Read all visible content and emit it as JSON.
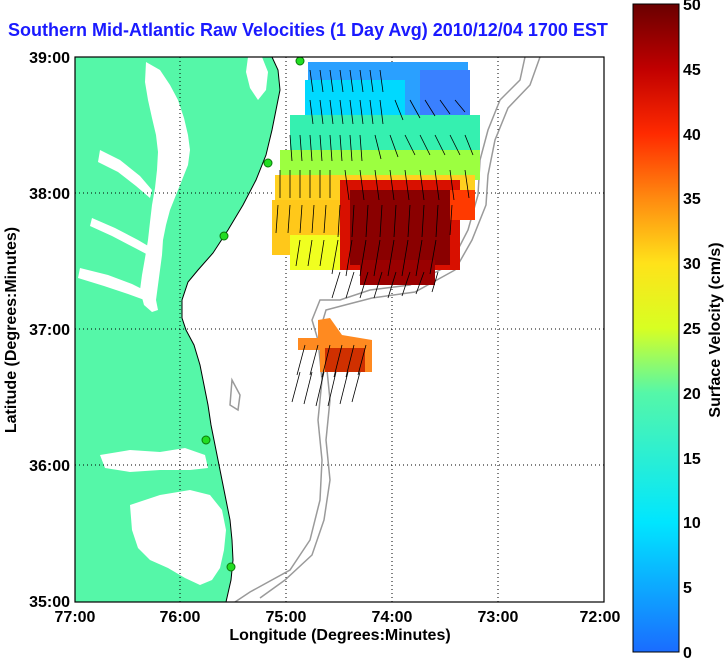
{
  "title": "Southern Mid-Atlantic Raw Velocities (1 Day Avg) 2010/12/04 1700 EST",
  "axes": {
    "xlabel": "Longitude (Degrees:Minutes)",
    "ylabel": "Latitude (Degrees:Minutes)",
    "xticks": [
      "77:00",
      "76:00",
      "75:00",
      "74:00",
      "73:00",
      "72:00"
    ],
    "yticks": [
      "39:00",
      "38:00",
      "37:00",
      "36:00",
      "35:00"
    ]
  },
  "colorbar": {
    "label": "Surface Velocity (cm/s)",
    "ticks": [
      "50",
      "45",
      "40",
      "35",
      "30",
      "25",
      "20",
      "15",
      "10",
      "5",
      "0"
    ],
    "min": 0,
    "max": 50
  },
  "colors": {
    "land": "#55f7a8",
    "title": "#1a1aff",
    "station": "#22dd22"
  }
}
